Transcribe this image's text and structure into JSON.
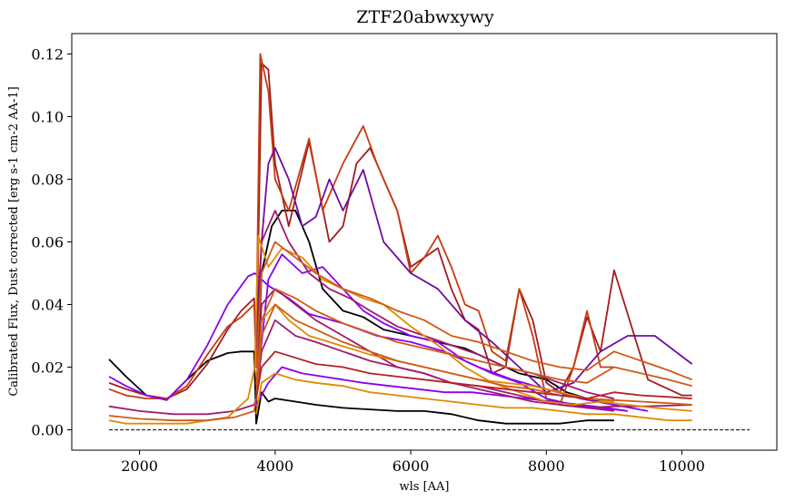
{
  "chart_data": {
    "type": "line",
    "title": "ZTF20abwxywy",
    "xlabel": "wls [AA]",
    "ylabel": "Calibrated Flux, Dust corrected [erg s-1 cm-2 AA-1]",
    "xlim": [
      1000,
      11400
    ],
    "ylim": [
      -0.0065,
      0.1265
    ],
    "xticks": [
      2000,
      4000,
      6000,
      8000,
      10000
    ],
    "yticks": [
      0.0,
      0.02,
      0.04,
      0.06,
      0.08,
      0.1,
      0.12
    ],
    "xtick_labels": [
      "2000",
      "4000",
      "6000",
      "8000",
      "10000"
    ],
    "ytick_labels": [
      "0.00",
      "0.02",
      "0.04",
      "0.06",
      "0.08",
      "0.10",
      "0.12"
    ],
    "grid": false,
    "legend": "none",
    "reference_line": {
      "y": 0,
      "x": [
        1550,
        11000
      ],
      "style": "dashed",
      "color": "#000000"
    },
    "series": [
      {
        "color": "#000000",
        "x": [
          1550,
          1800,
          2100,
          2400,
          2700,
          3000,
          3300,
          3500,
          3690,
          3720,
          3800,
          3900,
          4000,
          4300,
          4600,
          5000,
          5400,
          5800,
          6200,
          6600,
          7000,
          7400,
          7800,
          8200,
          8600,
          9000
        ],
        "y": [
          0.0225,
          0.017,
          0.011,
          0.0095,
          0.016,
          0.022,
          0.0245,
          0.025,
          0.025,
          0.002,
          0.012,
          0.009,
          0.01,
          0.009,
          0.008,
          0.007,
          0.0065,
          0.006,
          0.006,
          0.005,
          0.003,
          0.002,
          0.002,
          0.002,
          0.003,
          0.003
        ]
      },
      {
        "color": "#000000",
        "x": [
          3720,
          3800,
          3950,
          4100,
          4300,
          4500,
          4700,
          5000,
          5300,
          5600,
          6000,
          6400,
          6800,
          7200,
          7600,
          8000,
          8300,
          8600,
          9000
        ],
        "y": [
          0.008,
          0.05,
          0.065,
          0.07,
          0.07,
          0.06,
          0.045,
          0.038,
          0.036,
          0.032,
          0.03,
          0.028,
          0.026,
          0.022,
          0.018,
          0.016,
          0.012,
          0.01,
          0.008
        ]
      },
      {
        "color": "#a21c1c",
        "x": [
          1550,
          1800,
          2100,
          2400,
          2700,
          3000,
          3300,
          3500,
          3690,
          3720,
          3800,
          3900,
          4000,
          4200,
          4500,
          4800,
          5000,
          5200,
          5400,
          5600,
          5800,
          6000,
          6200,
          6400,
          6600,
          6800,
          7000,
          7200,
          7400,
          7600,
          7800,
          8000,
          8200,
          8400,
          8600,
          8800,
          9000,
          9500,
          10000,
          10150
        ],
        "y": [
          0.015,
          0.013,
          0.011,
          0.01,
          0.013,
          0.021,
          0.032,
          0.038,
          0.042,
          0.02,
          0.117,
          0.115,
          0.085,
          0.065,
          0.092,
          0.06,
          0.065,
          0.085,
          0.09,
          0.08,
          0.07,
          0.052,
          0.055,
          0.058,
          0.045,
          0.035,
          0.032,
          0.018,
          0.02,
          0.045,
          0.035,
          0.015,
          0.012,
          0.02,
          0.036,
          0.025,
          0.051,
          0.016,
          0.011,
          0.011
        ]
      },
      {
        "color": "#c43d10",
        "x": [
          1550,
          1800,
          2100,
          2400,
          2700,
          3000,
          3300,
          3500,
          3690,
          3720,
          3780,
          3900,
          4000,
          4200,
          4500,
          4700,
          5000,
          5300,
          5500,
          5800,
          6000,
          6200,
          6400,
          6600,
          6800,
          7000,
          7200,
          7400,
          7600,
          7800,
          8000,
          8200,
          8400,
          8600,
          8800,
          9000
        ],
        "y": [
          0.013,
          0.011,
          0.01,
          0.01,
          0.014,
          0.024,
          0.033,
          0.036,
          0.04,
          0.03,
          0.12,
          0.108,
          0.08,
          0.07,
          0.093,
          0.07,
          0.085,
          0.097,
          0.085,
          0.07,
          0.05,
          0.055,
          0.062,
          0.052,
          0.04,
          0.038,
          0.025,
          0.022,
          0.045,
          0.03,
          0.01,
          0.008,
          0.02,
          0.038,
          0.02,
          0.02
        ]
      },
      {
        "color": "#6f0d9e",
        "x": [
          3720,
          3800,
          3900,
          4000,
          4200,
          4400,
          4600,
          4800,
          5000,
          5300,
          5600,
          6000,
          6400,
          6800,
          7200,
          7600,
          8000,
          8400,
          8800,
          9200,
          9600,
          10150
        ],
        "y": [
          0.03,
          0.06,
          0.085,
          0.09,
          0.08,
          0.065,
          0.068,
          0.08,
          0.07,
          0.083,
          0.06,
          0.05,
          0.045,
          0.035,
          0.028,
          0.02,
          0.012,
          0.015,
          0.025,
          0.03,
          0.03,
          0.021
        ]
      },
      {
        "color": "#8a00ee",
        "x": [
          1550,
          1800,
          2100,
          2400,
          2700,
          3000,
          3300,
          3600,
          3700,
          3900,
          4200,
          4500,
          5000,
          5500,
          6000,
          6500,
          7000,
          7500,
          8000,
          8500,
          9000,
          9500
        ],
        "y": [
          0.017,
          0.014,
          0.011,
          0.0095,
          0.016,
          0.027,
          0.04,
          0.049,
          0.05,
          0.046,
          0.042,
          0.037,
          0.034,
          0.03,
          0.028,
          0.025,
          0.02,
          0.016,
          0.013,
          0.01,
          0.008,
          0.006
        ]
      },
      {
        "color": "#8a00ee",
        "x": [
          3720,
          3900,
          4100,
          4400,
          4700,
          5000,
          5300,
          5600,
          6000,
          6400,
          6800,
          7200,
          7600,
          8000,
          8400,
          8800,
          9200
        ],
        "y": [
          0.012,
          0.048,
          0.056,
          0.05,
          0.052,
          0.045,
          0.038,
          0.034,
          0.03,
          0.028,
          0.022,
          0.018,
          0.015,
          0.01,
          0.008,
          0.007,
          0.006
        ]
      },
      {
        "color": "#8a00ee",
        "x": [
          3720,
          3900,
          4100,
          4400,
          4700,
          5000,
          5300,
          5700,
          6100,
          6500,
          6900,
          7300,
          7700,
          8100,
          8500,
          8900,
          9200
        ],
        "y": [
          0.008,
          0.015,
          0.02,
          0.018,
          0.017,
          0.016,
          0.015,
          0.014,
          0.013,
          0.012,
          0.012,
          0.011,
          0.01,
          0.009,
          0.008,
          0.007,
          0.006
        ]
      },
      {
        "color": "#a01a70",
        "x": [
          1550,
          2000,
          2500,
          3000,
          3400,
          3690,
          3720,
          3800,
          4000,
          4300,
          4600,
          5000,
          5400,
          5800,
          6200,
          6600,
          7000,
          7400,
          7800,
          8200,
          8600,
          9000,
          9500,
          10150
        ],
        "y": [
          0.0075,
          0.006,
          0.005,
          0.005,
          0.006,
          0.008,
          0.01,
          0.04,
          0.045,
          0.04,
          0.035,
          0.03,
          0.025,
          0.02,
          0.018,
          0.015,
          0.013,
          0.011,
          0.009,
          0.008,
          0.007,
          0.0075,
          0.0075,
          0.008
        ]
      },
      {
        "color": "#a01a70",
        "x": [
          3720,
          3800,
          4000,
          4300,
          4600,
          5000,
          5400,
          5800,
          6200,
          6600,
          7000,
          7400,
          7800,
          8200,
          8600,
          9000
        ],
        "y": [
          0.01,
          0.025,
          0.035,
          0.03,
          0.028,
          0.025,
          0.022,
          0.02,
          0.018,
          0.015,
          0.014,
          0.012,
          0.01,
          0.008,
          0.007,
          0.006
        ]
      },
      {
        "color": "#a01a70",
        "x": [
          3720,
          3800,
          4000,
          4200,
          4500,
          4800,
          5100,
          5400,
          5800,
          6200,
          6600,
          7000,
          7400,
          7800,
          8200,
          8600,
          9000
        ],
        "y": [
          0.02,
          0.06,
          0.07,
          0.06,
          0.05,
          0.045,
          0.042,
          0.038,
          0.033,
          0.03,
          0.027,
          0.024,
          0.02,
          0.018,
          0.015,
          0.012,
          0.01
        ]
      },
      {
        "color": "#e08a00",
        "x": [
          1550,
          1800,
          2100,
          2400,
          2700,
          3000,
          3300,
          3600,
          3700,
          3750,
          3900,
          4100,
          4400,
          4700,
          5000,
          5300,
          5600,
          6000,
          6400,
          6800,
          7200,
          7600,
          8000,
          8400,
          8800,
          9200,
          9600,
          10150
        ],
        "y": [
          0.003,
          0.002,
          0.002,
          0.002,
          0.002,
          0.003,
          0.004,
          0.01,
          0.02,
          0.062,
          0.052,
          0.058,
          0.055,
          0.048,
          0.045,
          0.042,
          0.04,
          0.033,
          0.027,
          0.02,
          0.015,
          0.012,
          0.009,
          0.008,
          0.009,
          0.008,
          0.007,
          0.006
        ]
      },
      {
        "color": "#e08a00",
        "x": [
          3720,
          3800,
          4000,
          4300,
          4600,
          5000,
          5400,
          5800,
          6200,
          6600,
          7000,
          7400,
          7800,
          8200,
          8600,
          9000,
          9400,
          9800,
          10150
        ],
        "y": [
          0.005,
          0.015,
          0.018,
          0.016,
          0.015,
          0.014,
          0.012,
          0.011,
          0.01,
          0.009,
          0.008,
          0.007,
          0.007,
          0.006,
          0.005,
          0.005,
          0.004,
          0.003,
          0.003
        ]
      },
      {
        "color": "#e08a00",
        "x": [
          3720,
          3800,
          4000,
          4200,
          4500,
          4800,
          5100,
          5400,
          5800,
          6200,
          6600,
          7000,
          7400,
          7800,
          8200,
          8600,
          9000
        ],
        "y": [
          0.01,
          0.035,
          0.04,
          0.035,
          0.03,
          0.028,
          0.026,
          0.024,
          0.022,
          0.02,
          0.018,
          0.016,
          0.015,
          0.014,
          0.012,
          0.01,
          0.009
        ]
      },
      {
        "color": "#cf5a18",
        "x": [
          1550,
          2000,
          2500,
          3000,
          3400,
          3690,
          3720,
          3800,
          4000,
          4300,
          4600,
          5000,
          5400,
          5800,
          6200,
          6600,
          7000,
          7400,
          7800,
          8200,
          8600,
          9000,
          9400,
          9800,
          10150
        ],
        "y": [
          0.0045,
          0.0035,
          0.003,
          0.003,
          0.004,
          0.006,
          0.01,
          0.03,
          0.04,
          0.035,
          0.032,
          0.028,
          0.025,
          0.022,
          0.02,
          0.018,
          0.016,
          0.014,
          0.013,
          0.011,
          0.01,
          0.0095,
          0.009,
          0.0085,
          0.008
        ]
      },
      {
        "color": "#cf5a18",
        "x": [
          3720,
          3800,
          4000,
          4300,
          4600,
          5000,
          5400,
          5800,
          6200,
          6600,
          7000,
          7400,
          7800,
          8200,
          8600,
          9000,
          9400,
          9800,
          10150
        ],
        "y": [
          0.02,
          0.05,
          0.06,
          0.055,
          0.05,
          0.045,
          0.042,
          0.038,
          0.035,
          0.03,
          0.028,
          0.025,
          0.022,
          0.02,
          0.019,
          0.025,
          0.022,
          0.019,
          0.016
        ]
      },
      {
        "color": "#cf5a18",
        "x": [
          3720,
          3800,
          4000,
          4300,
          4600,
          5000,
          5400,
          5800,
          6200,
          6600,
          7000,
          7400,
          7800,
          8200,
          8600,
          9000,
          9400,
          9800,
          10150
        ],
        "y": [
          0.015,
          0.035,
          0.045,
          0.042,
          0.038,
          0.034,
          0.031,
          0.028,
          0.026,
          0.024,
          0.022,
          0.02,
          0.018,
          0.016,
          0.015,
          0.02,
          0.018,
          0.016,
          0.014
        ]
      },
      {
        "color": "#b22222",
        "x": [
          3720,
          3800,
          4000,
          4300,
          4600,
          5000,
          5400,
          5800,
          6200,
          6600,
          7000,
          7400,
          7800,
          8200,
          8600,
          9000,
          9400,
          9800,
          10150
        ],
        "y": [
          0.01,
          0.02,
          0.025,
          0.023,
          0.021,
          0.02,
          0.018,
          0.017,
          0.016,
          0.015,
          0.014,
          0.013,
          0.012,
          0.011,
          0.01,
          0.012,
          0.011,
          0.0105,
          0.01
        ]
      }
    ]
  }
}
